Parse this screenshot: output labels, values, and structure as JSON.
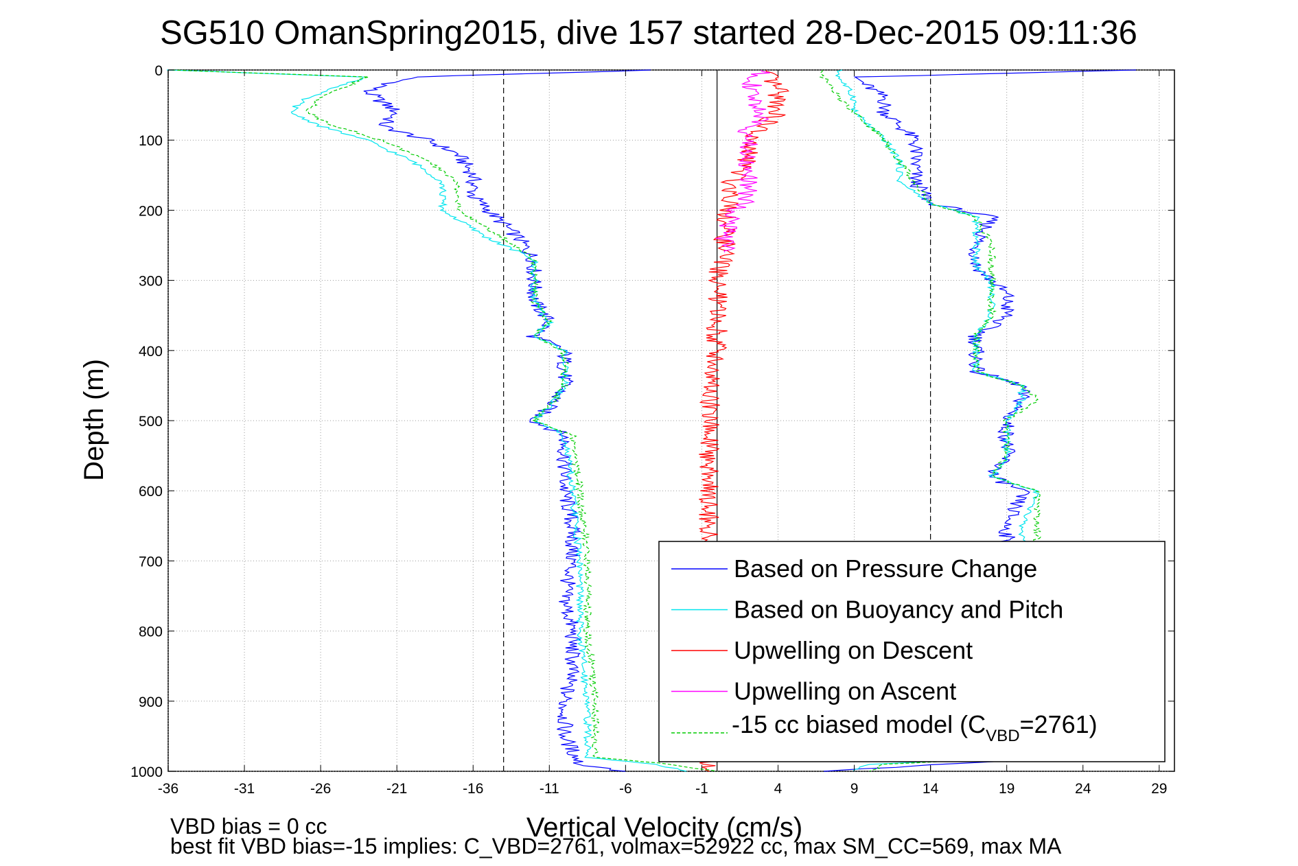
{
  "chart_data": {
    "type": "line",
    "title": "SG510 OmanSpring2015, dive 157 started 28-Dec-2015 09:11:36",
    "xlabel": "Vertical Velocity (cm/s)",
    "ylabel": "Depth (m)",
    "xlim": [
      -36,
      30
    ],
    "ylim": [
      0,
      1000
    ],
    "y_reversed": true,
    "grid": true,
    "x_ticks": [
      "-36",
      "-31",
      "-26",
      "-21",
      "-16",
      "-11",
      "-6",
      "-1",
      "4",
      "9",
      "14",
      "19",
      "24",
      "29"
    ],
    "y_ticks": [
      "0",
      "100",
      "200",
      "300",
      "400",
      "500",
      "600",
      "700",
      "800",
      "900",
      "1000"
    ],
    "reference_lines": {
      "dashed_x": [
        -14,
        14
      ],
      "solid_x": [
        0
      ]
    },
    "legend_position": "bottom-right",
    "series": [
      {
        "name": "Based on Pressure Change",
        "color": "#0000ff",
        "descent_points": [
          [
            -4,
            0
          ],
          [
            -20,
            10
          ],
          [
            -23,
            30
          ],
          [
            -21,
            60
          ],
          [
            -22,
            80
          ],
          [
            -19,
            100
          ],
          [
            -17,
            120
          ],
          [
            -16,
            150
          ],
          [
            -16,
            180
          ],
          [
            -15,
            200
          ],
          [
            -13,
            240
          ],
          [
            -12,
            270
          ],
          [
            -12,
            300
          ],
          [
            -12,
            330
          ],
          [
            -11,
            360
          ],
          [
            -12,
            380
          ],
          [
            -10,
            400
          ],
          [
            -10,
            450
          ],
          [
            -11,
            480
          ],
          [
            -12,
            500
          ],
          [
            -10,
            520
          ],
          [
            -10,
            550
          ],
          [
            -10,
            600
          ],
          [
            -9.5,
            650
          ],
          [
            -9.5,
            700
          ],
          [
            -10,
            750
          ],
          [
            -9.5,
            800
          ],
          [
            -9.5,
            850
          ],
          [
            -10,
            900
          ],
          [
            -10,
            950
          ],
          [
            -9,
            990
          ],
          [
            -6,
            1000
          ]
        ],
        "ascent_points": [
          [
            28,
            0
          ],
          [
            9,
            10
          ],
          [
            11,
            40
          ],
          [
            11,
            60
          ],
          [
            12,
            80
          ],
          [
            13,
            100
          ],
          [
            13,
            130
          ],
          [
            13,
            160
          ],
          [
            14,
            190
          ],
          [
            18,
            210
          ],
          [
            17,
            250
          ],
          [
            17,
            280
          ],
          [
            18,
            300
          ],
          [
            19,
            320
          ],
          [
            19,
            350
          ],
          [
            17,
            380
          ],
          [
            17,
            400
          ],
          [
            17,
            430
          ],
          [
            20,
            450
          ],
          [
            20,
            470
          ],
          [
            19,
            500
          ],
          [
            19,
            550
          ],
          [
            18,
            580
          ],
          [
            20,
            600
          ],
          [
            19,
            650
          ],
          [
            19,
            700
          ],
          [
            20,
            750
          ],
          [
            20,
            800
          ],
          [
            20,
            850
          ],
          [
            20,
            900
          ],
          [
            20,
            950
          ],
          [
            19,
            985
          ],
          [
            7,
            1000
          ]
        ]
      },
      {
        "name": "Based on Buoyancy and Pitch",
        "color": "#00e5ee",
        "descent_points": [
          [
            -36,
            0
          ],
          [
            -23,
            10
          ],
          [
            -27,
            40
          ],
          [
            -28,
            60
          ],
          [
            -26,
            80
          ],
          [
            -23,
            100
          ],
          [
            -20,
            130
          ],
          [
            -18,
            160
          ],
          [
            -18,
            200
          ],
          [
            -15,
            240
          ],
          [
            -12,
            270
          ],
          [
            -12,
            300
          ],
          [
            -12,
            330
          ],
          [
            -11,
            360
          ],
          [
            -12,
            380
          ],
          [
            -10,
            400
          ],
          [
            -10,
            450
          ],
          [
            -11,
            480
          ],
          [
            -12,
            500
          ],
          [
            -10,
            520
          ],
          [
            -9.5,
            600
          ],
          [
            -9,
            700
          ],
          [
            -9,
            800
          ],
          [
            -8.5,
            900
          ],
          [
            -8.5,
            980
          ],
          [
            -4,
            990
          ],
          [
            -2,
            1000
          ]
        ],
        "ascent_points": [
          [
            8,
            0
          ],
          [
            8,
            10
          ],
          [
            9,
            40
          ],
          [
            9,
            60
          ],
          [
            10,
            80
          ],
          [
            11,
            100
          ],
          [
            12,
            130
          ],
          [
            12,
            160
          ],
          [
            14,
            190
          ],
          [
            17,
            210
          ],
          [
            17,
            250
          ],
          [
            17,
            280
          ],
          [
            18,
            300
          ],
          [
            18,
            320
          ],
          [
            18,
            350
          ],
          [
            17,
            380
          ],
          [
            17,
            400
          ],
          [
            17,
            430
          ],
          [
            20,
            450
          ],
          [
            20,
            470
          ],
          [
            19,
            500
          ],
          [
            19,
            550
          ],
          [
            18,
            580
          ],
          [
            21,
            600
          ],
          [
            20,
            650
          ],
          [
            20,
            700
          ],
          [
            21,
            750
          ],
          [
            21,
            800
          ],
          [
            21,
            850
          ],
          [
            21,
            900
          ],
          [
            21,
            950
          ],
          [
            20,
            980
          ],
          [
            10,
            990
          ],
          [
            9,
            1000
          ]
        ]
      },
      {
        "name": "Upwelling on Descent",
        "color": "#ff0000",
        "points": [
          [
            3,
            0
          ],
          [
            4,
            30
          ],
          [
            4,
            60
          ],
          [
            3,
            80
          ],
          [
            2,
            100
          ],
          [
            2,
            130
          ],
          [
            1,
            160
          ],
          [
            1,
            190
          ],
          [
            0.5,
            220
          ],
          [
            0.5,
            260
          ],
          [
            0,
            300
          ],
          [
            0,
            350
          ],
          [
            0,
            400
          ],
          [
            -0.5,
            450
          ],
          [
            -0.5,
            500
          ],
          [
            -0.5,
            550
          ],
          [
            -0.5,
            600
          ],
          [
            -0.5,
            650
          ],
          [
            -0.5,
            700
          ],
          [
            -0.5,
            800
          ],
          [
            -0.5,
            900
          ],
          [
            -0.5,
            1000
          ]
        ]
      },
      {
        "name": "Upwelling on Ascent",
        "color": "#ff00ff",
        "points": [
          [
            3,
            0
          ],
          [
            2,
            30
          ],
          [
            3,
            60
          ],
          [
            2,
            90
          ],
          [
            2,
            120
          ],
          [
            2,
            150
          ],
          [
            2,
            180
          ],
          [
            1,
            210
          ],
          [
            0.5,
            240
          ],
          [
            0.5,
            260
          ]
        ]
      },
      {
        "name": "-15 cc biased model (C_VBD=2761)",
        "color": "#00cc00",
        "dashed": true,
        "descent_points": [
          [
            -36,
            0
          ],
          [
            -23,
            10
          ],
          [
            -26,
            40
          ],
          [
            -27,
            60
          ],
          [
            -25,
            80
          ],
          [
            -22,
            100
          ],
          [
            -19,
            130
          ],
          [
            -17,
            160
          ],
          [
            -17,
            200
          ],
          [
            -14,
            240
          ],
          [
            -12,
            270
          ],
          [
            -12,
            300
          ],
          [
            -12,
            330
          ],
          [
            -11,
            360
          ],
          [
            -12,
            380
          ],
          [
            -10,
            400
          ],
          [
            -10,
            450
          ],
          [
            -11,
            480
          ],
          [
            -12,
            500
          ],
          [
            -9.5,
            520
          ],
          [
            -9,
            600
          ],
          [
            -8.5,
            700
          ],
          [
            -8.5,
            800
          ],
          [
            -8,
            900
          ],
          [
            -8,
            980
          ],
          [
            -3,
            990
          ],
          [
            0,
            1000
          ]
        ],
        "ascent_points": [
          [
            7,
            0
          ],
          [
            7,
            10
          ],
          [
            8,
            40
          ],
          [
            9,
            60
          ],
          [
            10,
            80
          ],
          [
            11,
            100
          ],
          [
            12,
            130
          ],
          [
            13,
            160
          ],
          [
            14,
            190
          ],
          [
            17,
            210
          ],
          [
            18,
            250
          ],
          [
            18,
            280
          ],
          [
            18,
            300
          ],
          [
            18,
            320
          ],
          [
            18,
            350
          ],
          [
            17,
            380
          ],
          [
            17,
            400
          ],
          [
            17,
            430
          ],
          [
            20,
            450
          ],
          [
            21,
            470
          ],
          [
            19,
            500
          ],
          [
            19,
            550
          ],
          [
            18,
            580
          ],
          [
            21,
            600
          ],
          [
            21,
            650
          ],
          [
            21,
            700
          ],
          [
            21,
            750
          ],
          [
            21,
            800
          ],
          [
            21,
            850
          ],
          [
            21,
            900
          ],
          [
            21,
            950
          ],
          [
            20,
            980
          ],
          [
            11,
            990
          ],
          [
            10,
            1000
          ]
        ]
      }
    ]
  },
  "legend": {
    "items": [
      {
        "label": "Based on Pressure Change",
        "color": "#0000ff",
        "dashed": false
      },
      {
        "label": "Based on Buoyancy and Pitch",
        "color": "#00e5ee",
        "dashed": false
      },
      {
        "label": "Upwelling on Descent",
        "color": "#ff0000",
        "dashed": false
      },
      {
        "label": "Upwelling on Ascent",
        "color": "#ff00ff",
        "dashed": false
      }
    ],
    "model_item": {
      "prefix": "-15 cc biased model (C",
      "subscript": "VBD",
      "suffix": "=2761)",
      "color": "#00cc00",
      "dashed": true
    }
  },
  "footer": {
    "line1": "VBD bias = 0 cc",
    "line2": "best fit VBD bias=-15 implies: C_VBD=2761, volmax=52922 cc, max SM_CC=569, max MA"
  }
}
